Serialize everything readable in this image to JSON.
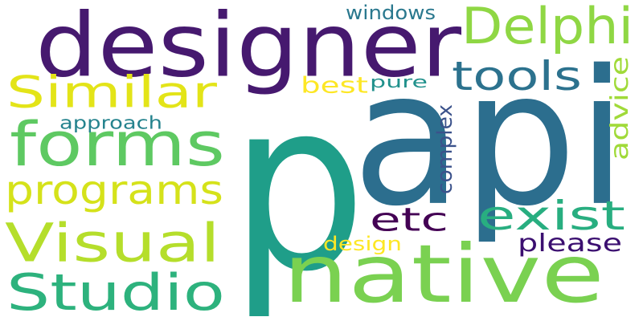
{
  "word_cloud": {
    "background": "#ffffff",
    "words": [
      {
        "text": "api",
        "color": "#2c6e8e",
        "rotated": false
      },
      {
        "text": "p",
        "color": "#1f9e89",
        "rotated": false
      },
      {
        "text": "designer",
        "color": "#46196f",
        "rotated": false
      },
      {
        "text": "native",
        "color": "#7ad151",
        "rotated": false
      },
      {
        "text": "forms",
        "color": "#5ec962",
        "rotated": false
      },
      {
        "text": "Studio",
        "color": "#2db27d",
        "rotated": false
      },
      {
        "text": "Visual",
        "color": "#b5de2b",
        "rotated": false
      },
      {
        "text": "programs",
        "color": "#d5e21a",
        "rotated": false
      },
      {
        "text": "Similar",
        "color": "#e3e418",
        "rotated": false
      },
      {
        "text": "Delphi",
        "color": "#8fd744",
        "rotated": false
      },
      {
        "text": "tools",
        "color": "#2c728e",
        "rotated": false
      },
      {
        "text": "exist",
        "color": "#28ae80",
        "rotated": false
      },
      {
        "text": "etc",
        "color": "#440154",
        "rotated": false
      },
      {
        "text": "please",
        "color": "#3b0f70",
        "rotated": false
      },
      {
        "text": "advice",
        "color": "#a0da39",
        "rotated": true
      },
      {
        "text": "complex",
        "color": "#3b528b",
        "rotated": true
      },
      {
        "text": "best",
        "color": "#fde725",
        "rotated": false
      },
      {
        "text": "pure",
        "color": "#21918c",
        "rotated": false
      },
      {
        "text": "approach",
        "color": "#25838e",
        "rotated": false
      },
      {
        "text": "windows",
        "color": "#2a788e",
        "rotated": false
      },
      {
        "text": "design",
        "color": "#fde725",
        "rotated": false
      }
    ]
  }
}
